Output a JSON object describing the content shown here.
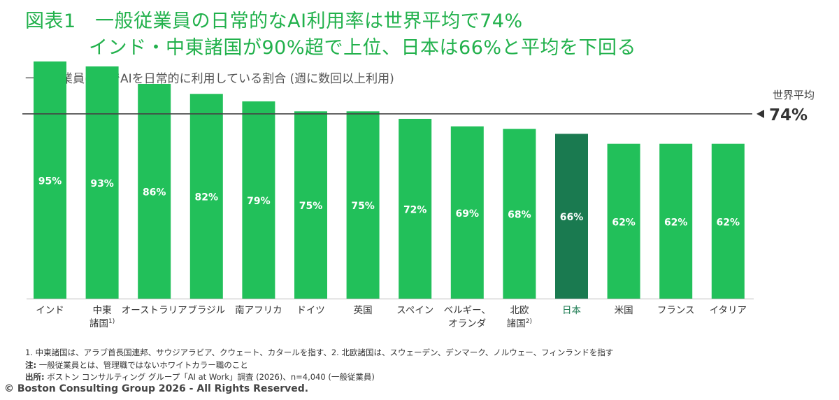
{
  "title": {
    "line1": "図表1　一般従業員の日常的なAI利用率は世界平均で74%",
    "line2": "インド・中東諸国が90%超で上位、日本は66%と平均を下回る"
  },
  "subtitle": "一般従業員の中でAIを日常的に利用している割合 (週に数回以上利用)",
  "chart_data": {
    "type": "bar",
    "categories": [
      "インド",
      "中東諸国1)",
      "オーストラリア",
      "ブラジル",
      "南アフリカ",
      "ドイツ",
      "英国",
      "スペイン",
      "ベルギー、オランダ",
      "北欧諸国2)",
      "日本",
      "米国",
      "フランス",
      "イタリア"
    ],
    "category_lines": [
      [
        "インド"
      ],
      [
        "中東",
        "諸国1)"
      ],
      [
        "オーストラリア"
      ],
      [
        "ブラジル"
      ],
      [
        "南アフリカ"
      ],
      [
        "ドイツ"
      ],
      [
        "英国"
      ],
      [
        "スペイン"
      ],
      [
        "ベルギー、",
        "オランダ"
      ],
      [
        "北欧",
        "諸国2)"
      ],
      [
        "日本"
      ],
      [
        "米国"
      ],
      [
        "フランス"
      ],
      [
        "イタリア"
      ]
    ],
    "values": [
      95,
      93,
      86,
      82,
      79,
      75,
      75,
      72,
      69,
      68,
      66,
      62,
      62,
      62
    ],
    "value_labels": [
      "95%",
      "93%",
      "86%",
      "82%",
      "79%",
      "75%",
      "75%",
      "72%",
      "69%",
      "68%",
      "66%",
      "62%",
      "62%",
      "62%"
    ],
    "highlight_category": "日本",
    "reference_line": {
      "value": 74,
      "label": "世界平均",
      "value_label": "74%"
    },
    "ylim": [
      0,
      100
    ],
    "colors": {
      "bar": "#22c05a",
      "highlight": "#1a7a50",
      "label_highlight": "#1a7a50",
      "line": "#444444"
    }
  },
  "footnotes": {
    "note1": "1. 中東諸国は、アラブ首長国連邦、サウジアラビア、クウェート、カタールを指す、2. 北欧諸国は、スウェーデン、デンマーク、ノルウェー、フィンランドを指す",
    "note2_head": "注:",
    "note2_text": " 一般従業員とは、管理職ではないホワイトカラー職のこと",
    "source_head": "出所:",
    "source_text": " ボストン コンサルティング グループ「AI at Work」調査 (2026)、n=4,040 (一般従業員)"
  },
  "copyright": "© Boston Consulting Group 2026 - All Rights Reserved."
}
